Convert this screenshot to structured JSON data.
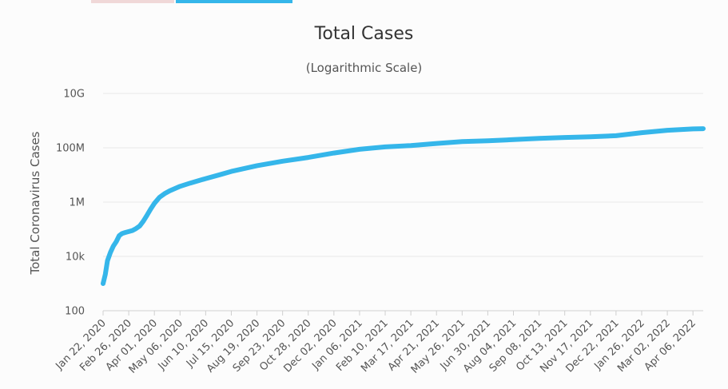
{
  "tabs": [
    {
      "label": "",
      "active": false,
      "color": "#f0d8d8"
    },
    {
      "label": "",
      "active": true,
      "color": "#35b6ea"
    }
  ],
  "chart_data": {
    "type": "line",
    "title": "Total Cases",
    "subtitle": "(Logarithmic Scale)",
    "xlabel": "",
    "ylabel": "Total Coronavirus Cases",
    "yscale": "log",
    "ylim": [
      100,
      10000000000
    ],
    "yticks": [
      {
        "value": 100,
        "label": "100"
      },
      {
        "value": 10000,
        "label": "10k"
      },
      {
        "value": 1000000,
        "label": "1M"
      },
      {
        "value": 100000000,
        "label": "100M"
      },
      {
        "value": 10000000000,
        "label": "10G"
      }
    ],
    "xticks": [
      "Jan 22, 2020",
      "Feb 26, 2020",
      "Apr 01, 2020",
      "May 06, 2020",
      "Jun 10, 2020",
      "Jul 15, 2020",
      "Aug 19, 2020",
      "Sep 23, 2020",
      "Oct 28, 2020",
      "Dec 02, 2020",
      "Jan 06, 2021",
      "Feb 10, 2021",
      "Mar 17, 2021",
      "Apr 21, 2021",
      "May 26, 2021",
      "Jun 30, 2021",
      "Aug 04, 2021",
      "Sep 08, 2021",
      "Oct 13, 2021",
      "Nov 17, 2021",
      "Dec 22, 2021",
      "Jan 26, 2022",
      "Mar 02, 2022",
      "Apr 06, 2022"
    ],
    "grid": true,
    "series": [
      {
        "color": "#35b6ea",
        "x": [
          "Jan 22, 2020",
          "Jan 25, 2020",
          "Jan 28, 2020",
          "Feb 01, 2020",
          "Feb 05, 2020",
          "Feb 09, 2020",
          "Feb 13, 2020",
          "Feb 17, 2020",
          "Feb 21, 2020",
          "Feb 26, 2020",
          "Mar 02, 2020",
          "Mar 07, 2020",
          "Mar 12, 2020",
          "Mar 17, 2020",
          "Mar 22, 2020",
          "Mar 27, 2020",
          "Apr 01, 2020",
          "Apr 08, 2020",
          "Apr 15, 2020",
          "Apr 22, 2020",
          "May 06, 2020",
          "May 20, 2020",
          "Jun 10, 2020",
          "Jul 01, 2020",
          "Jul 15, 2020",
          "Aug 19, 2020",
          "Sep 23, 2020",
          "Oct 28, 2020",
          "Dec 02, 2020",
          "Jan 06, 2021",
          "Feb 10, 2021",
          "Mar 17, 2021",
          "Apr 21, 2021",
          "May 26, 2021",
          "Jun 30, 2021",
          "Aug 04, 2021",
          "Sep 08, 2021",
          "Oct 13, 2021",
          "Nov 17, 2021",
          "Dec 22, 2021",
          "Jan 26, 2022",
          "Mar 02, 2022",
          "Apr 06, 2022",
          "Apr 20, 2022"
        ],
        "values": [
          1000,
          2200,
          7000,
          14000,
          24000,
          35000,
          58000,
          70000,
          76000,
          82000,
          90000,
          106000,
          132000,
          200000,
          330000,
          560000,
          900000,
          1500000,
          2050000,
          2600000,
          3800000,
          5000000,
          7300000,
          10500000,
          13500000,
          22000000,
          32000000,
          44000000,
          64000000,
          88000000,
          108000000,
          121000000,
          144000000,
          168000000,
          182000000,
          200000000,
          222000000,
          240000000,
          253000000,
          278000000,
          360000000,
          440000000,
          495000000,
          505000000
        ]
      }
    ]
  }
}
